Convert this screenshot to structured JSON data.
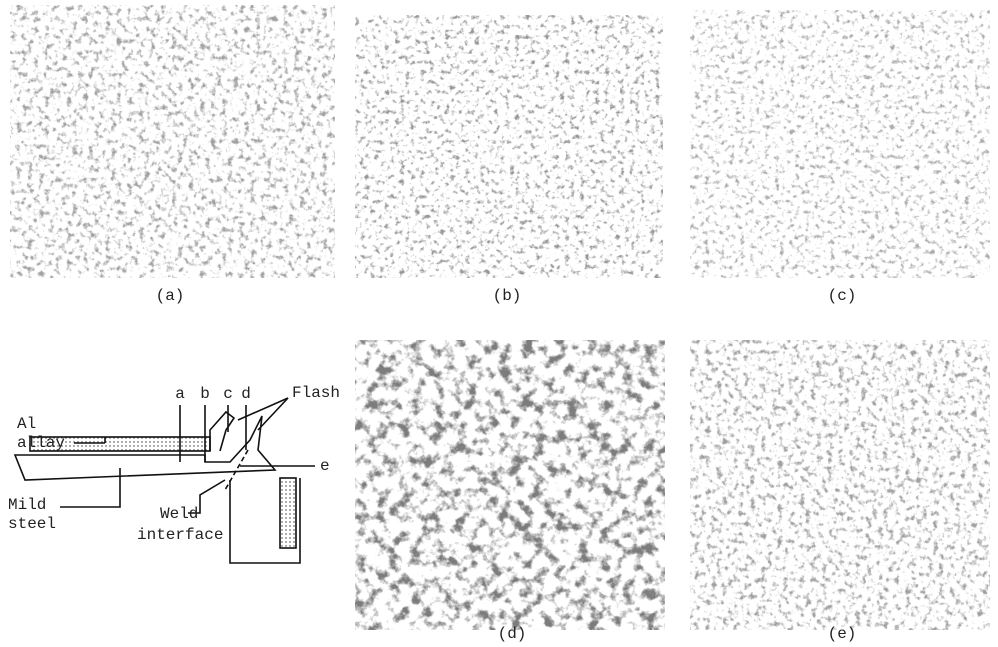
{
  "panels": [
    "(a)",
    "(b)",
    "(c)",
    "(d)",
    "(e)"
  ],
  "diagram": {
    "texts": [
      "Al",
      "allay",
      "a",
      "b",
      "c",
      "d",
      "Flash",
      "e",
      "Mild",
      "steel",
      "Weld",
      "interface"
    ]
  }
}
